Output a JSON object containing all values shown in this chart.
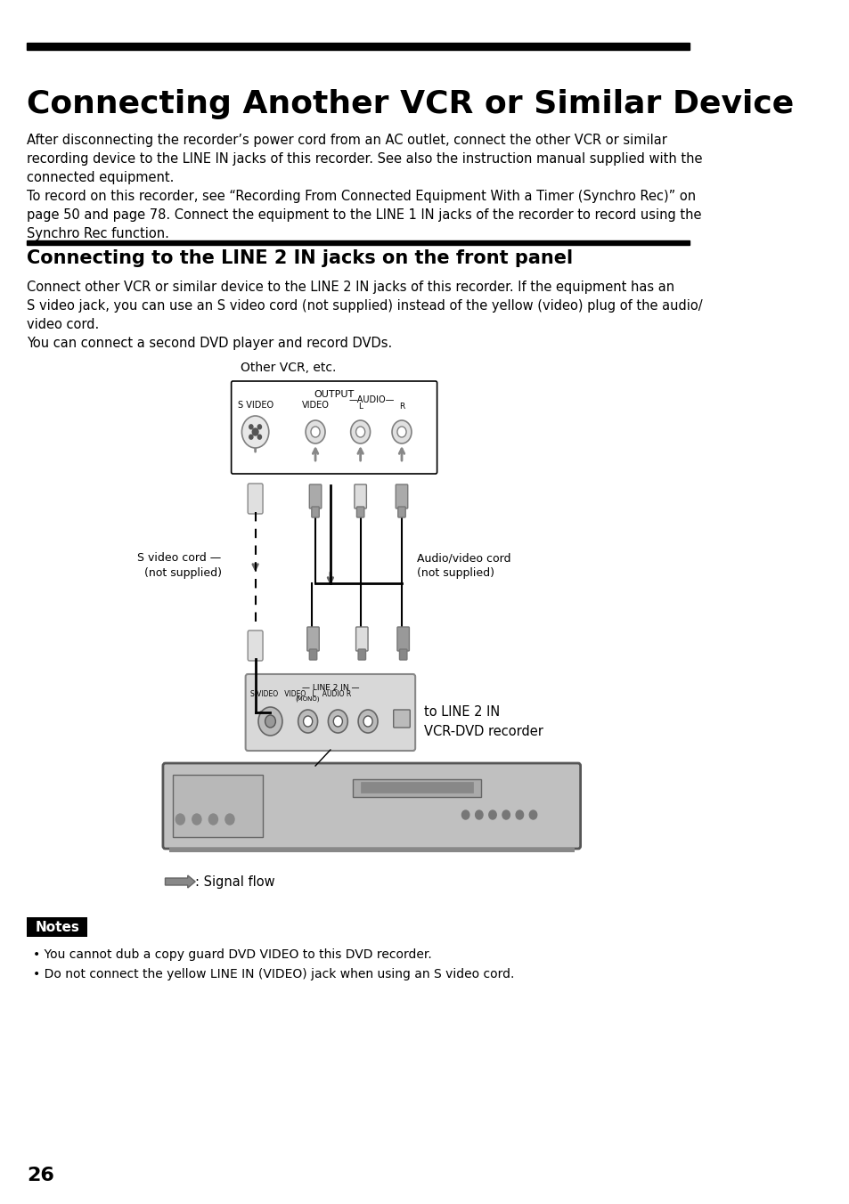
{
  "title": "Connecting Another VCR or Similar Device",
  "section_title": "Connecting to the LINE 2 IN jacks on the front panel",
  "bg_color": "#ffffff",
  "text_color": "#000000",
  "para1": "After disconnecting the recorder’s power cord from an AC outlet, connect the other VCR or similar\nrecording device to the LINE IN jacks of this recorder. See also the instruction manual supplied with the\nconnected equipment.\nTo record on this recorder, see “Recording From Connected Equipment With a Timer (Synchro Rec)” on\npage 50 and page 78. Connect the equipment to the LINE 1 IN jacks of the recorder to record using the\nSynchro Rec function.",
  "para2": "Connect other VCR or similar device to the LINE 2 IN jacks of this recorder. If the equipment has an\nS video jack, you can use an S video cord (not supplied) instead of the yellow (video) plug of the audio/\nvideo cord.\nYou can connect a second DVD player and record DVDs.",
  "label_other_vcr": "Other VCR, etc.",
  "label_output": "OUTPUT",
  "label_svideo": "S VIDEO",
  "label_video": "VIDEO",
  "label_audio": "—AUDIO—",
  "label_audio_l": "L",
  "label_audio_r": "R",
  "label_svideo_cord": "S video cord —\n(not supplied)",
  "label_avideo_cord": "Audio/video cord\n(not supplied)",
  "label_line2in": "to LINE 2 IN",
  "label_vcrdvd": "VCR-DVD recorder",
  "label_signal": ": Signal flow",
  "note_title": "Notes",
  "note1": "You cannot dub a copy guard DVD VIDEO to this DVD recorder.",
  "note2": "Do not connect the yellow LINE IN (VIDEO) jack when using an S video cord.",
  "page_num": "26"
}
